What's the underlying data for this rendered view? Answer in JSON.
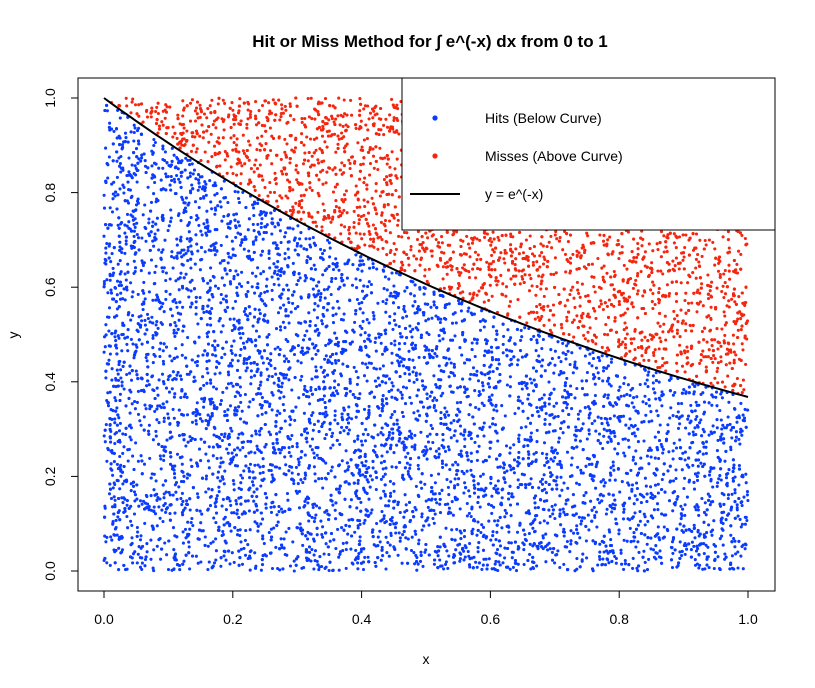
{
  "chart_data": {
    "type": "scatter",
    "title": "Hit or Miss Method for ∫ e^(-x) dx from 0 to 1",
    "xlabel": "x",
    "ylabel": "y",
    "xlim": [
      0,
      1
    ],
    "ylim": [
      0,
      1
    ],
    "x_ticks": [
      "0.0",
      "0.2",
      "0.4",
      "0.6",
      "0.8",
      "1.0"
    ],
    "y_ticks": [
      "0.0",
      "0.2",
      "0.4",
      "0.6",
      "0.8",
      "1.0"
    ],
    "grid": false,
    "legend_position": "top-right",
    "series": [
      {
        "name": "Hits (Below Curve)",
        "kind": "points",
        "color": "#0a3bff",
        "sample_count": 6300,
        "region": "y <= e^(-x)"
      },
      {
        "name": "Misses (Above Curve)",
        "kind": "points",
        "color": "#f5260f",
        "sample_count": 3700,
        "region": "y > e^(-x)"
      },
      {
        "name": "y = e^(-x)",
        "kind": "line",
        "color": "#000000",
        "function": "exp(-x)"
      }
    ]
  }
}
